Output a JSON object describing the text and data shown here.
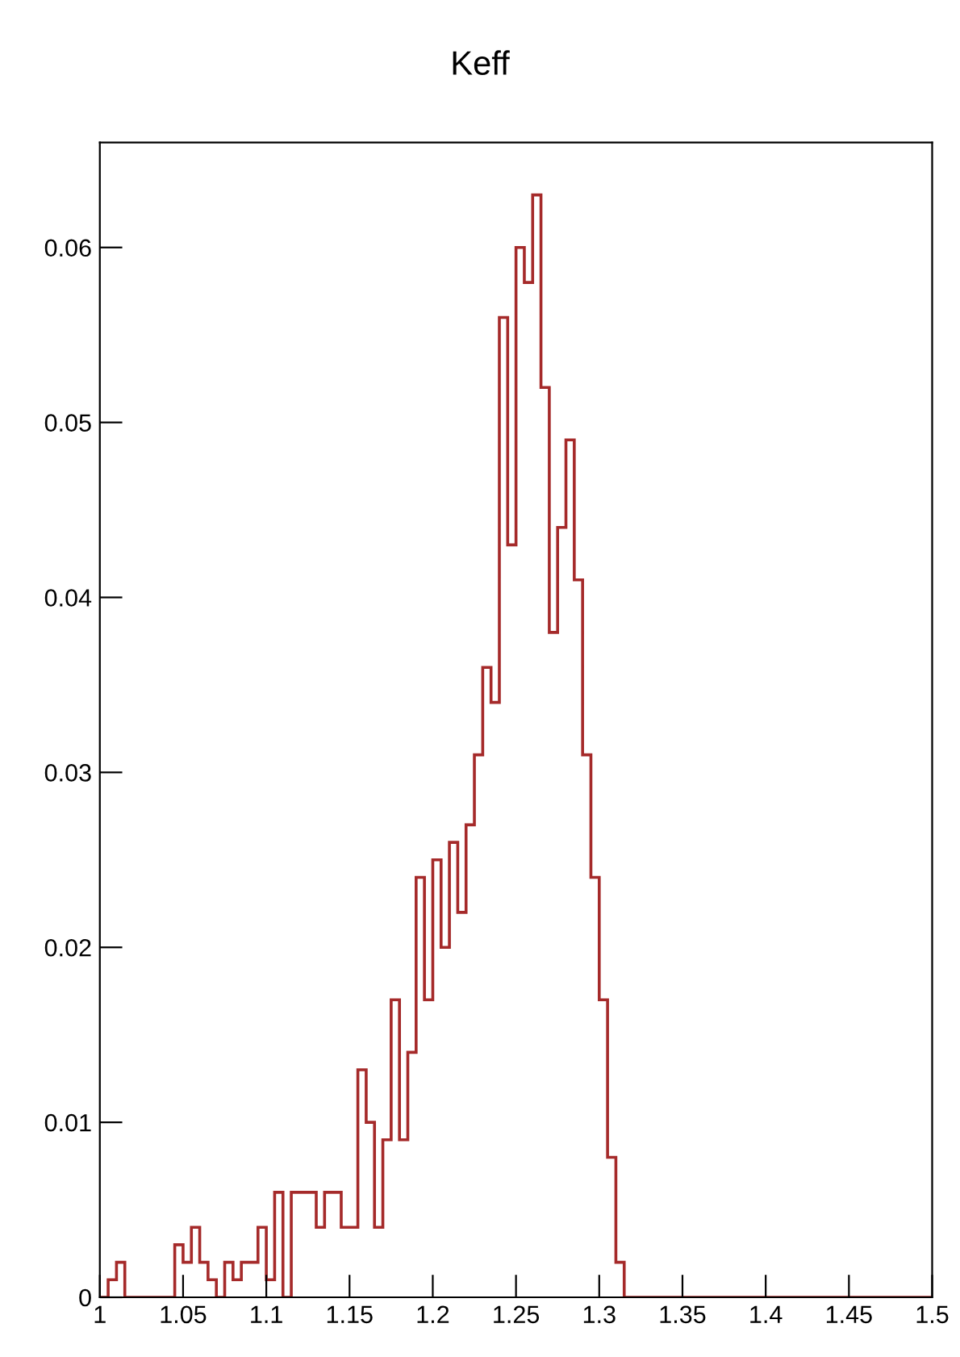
{
  "chart_data": {
    "type": "histogram",
    "title": "Keff",
    "bins": [
      1.0,
      1.005,
      1.01,
      1.015,
      1.02,
      1.025,
      1.03,
      1.035,
      1.04,
      1.045,
      1.05,
      1.055,
      1.06,
      1.065,
      1.07,
      1.075,
      1.08,
      1.085,
      1.09,
      1.095,
      1.1,
      1.105,
      1.11,
      1.115,
      1.12,
      1.125,
      1.13,
      1.135,
      1.14,
      1.145,
      1.15,
      1.155,
      1.16,
      1.165,
      1.17,
      1.175,
      1.18,
      1.185,
      1.19,
      1.195,
      1.2,
      1.205,
      1.21,
      1.215,
      1.22,
      1.225,
      1.23,
      1.235,
      1.24,
      1.245,
      1.25,
      1.255,
      1.26,
      1.265,
      1.27,
      1.275,
      1.28,
      1.285,
      1.29,
      1.295,
      1.3,
      1.305,
      1.31,
      1.315,
      1.32,
      1.325,
      1.33,
      1.335,
      1.34,
      1.345,
      1.35,
      1.355,
      1.36,
      1.365,
      1.37,
      1.375,
      1.38,
      1.385,
      1.39,
      1.395,
      1.4,
      1.405,
      1.41,
      1.415,
      1.42,
      1.425,
      1.43,
      1.435,
      1.44,
      1.445,
      1.45,
      1.455,
      1.46,
      1.465,
      1.47,
      1.475,
      1.48,
      1.485,
      1.49,
      1.495,
      1.5
    ],
    "values": [
      0,
      0.001,
      0.002,
      0,
      0,
      0,
      0,
      0,
      0,
      0.003,
      0.002,
      0.004,
      0.002,
      0.001,
      0,
      0.002,
      0.001,
      0.002,
      0.002,
      0.004,
      0.001,
      0.006,
      0,
      0.006,
      0.006,
      0.006,
      0.004,
      0.006,
      0.006,
      0.004,
      0.004,
      0.013,
      0.01,
      0.004,
      0.009,
      0.017,
      0.009,
      0.014,
      0.024,
      0.017,
      0.025,
      0.02,
      0.026,
      0.022,
      0.027,
      0.031,
      0.036,
      0.034,
      0.056,
      0.043,
      0.06,
      0.058,
      0.063,
      0.052,
      0.038,
      0.044,
      0.049,
      0.041,
      0.031,
      0.024,
      0.017,
      0.008,
      0.002,
      0,
      0,
      0,
      0,
      0,
      0,
      0,
      0,
      0,
      0,
      0,
      0,
      0,
      0,
      0,
      0,
      0,
      0,
      0,
      0,
      0,
      0,
      0,
      0,
      0,
      0,
      0,
      0,
      0,
      0,
      0,
      0,
      0,
      0,
      0,
      0,
      0
    ],
    "color": "#a52a2a",
    "xlim": [
      1,
      1.5
    ],
    "xticks": [
      1,
      1.05,
      1.1,
      1.15,
      1.2,
      1.25,
      1.3,
      1.35,
      1.4,
      1.45,
      1.5
    ],
    "ylim": [
      0,
      0.066
    ],
    "yticks": [
      0,
      0.01,
      0.02,
      0.03,
      0.04,
      0.05,
      0.06
    ],
    "grid": false
  }
}
